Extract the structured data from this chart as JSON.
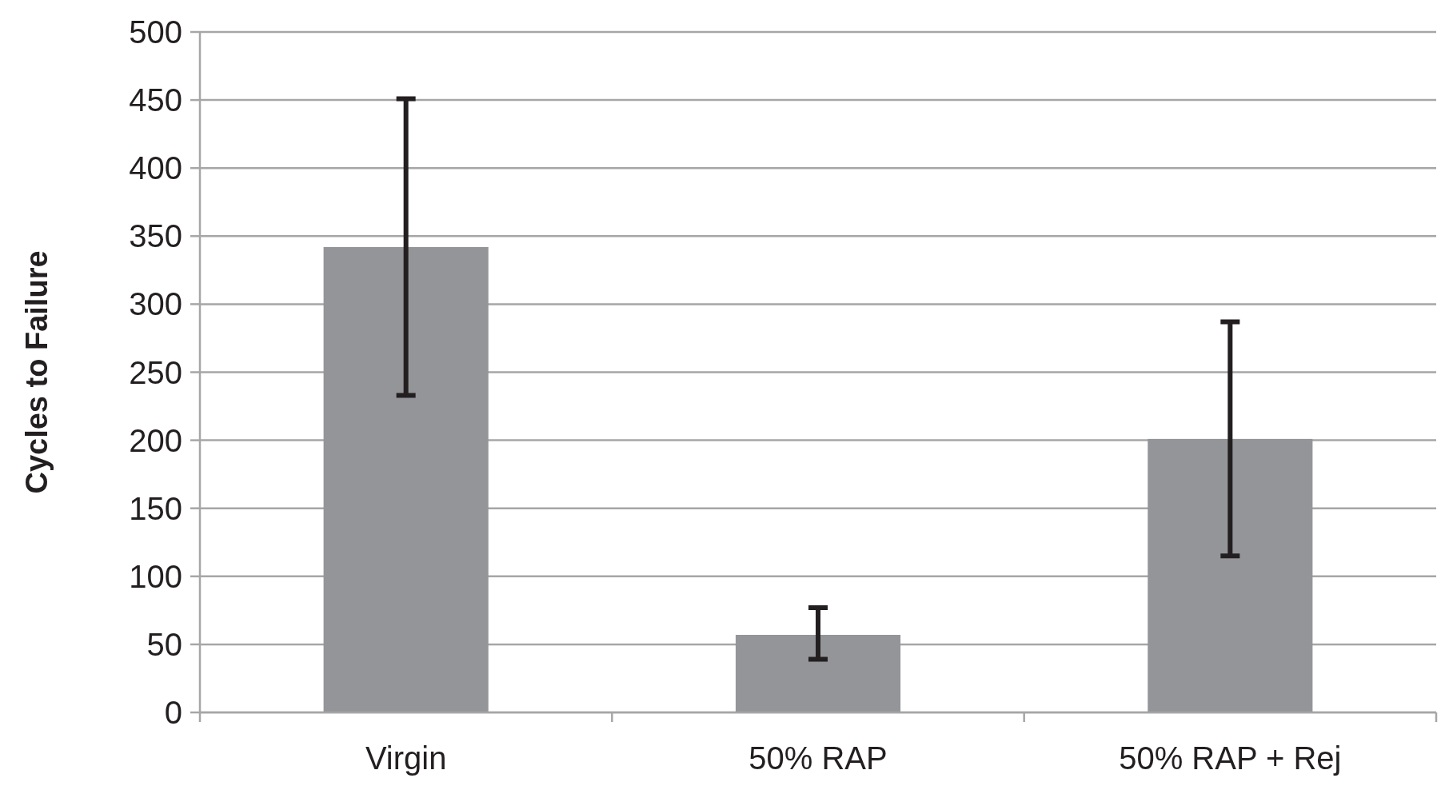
{
  "chart_data": {
    "type": "bar",
    "ylabel": "Cycles to Failure",
    "categories": [
      "Virgin",
      "50% RAP",
      "50% RAP + Rej"
    ],
    "values": [
      342,
      57,
      201
    ],
    "color": "#939598",
    "errors": [
      [
        233,
        451
      ],
      [
        39,
        77
      ],
      [
        115,
        287
      ]
    ],
    "ylim": [
      0,
      500
    ],
    "yticks": [
      0,
      50,
      100,
      150,
      200,
      250,
      300,
      350,
      400,
      450,
      500
    ],
    "grid": "y"
  }
}
